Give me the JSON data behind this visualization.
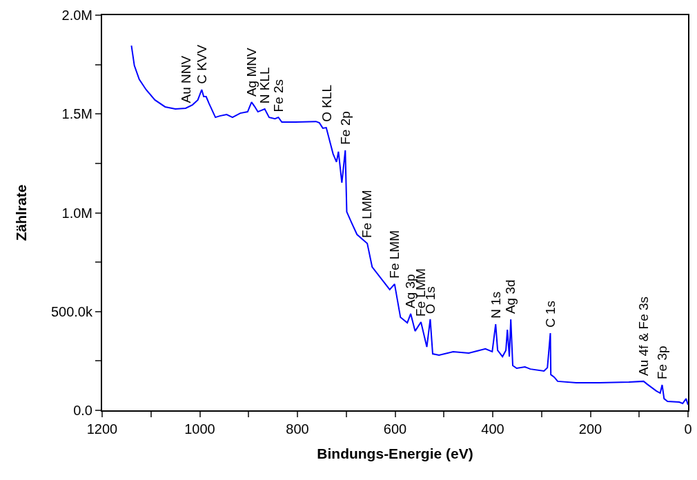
{
  "chart_data": {
    "type": "line",
    "xlabel": "Bindungs-Energie (eV)",
    "ylabel": "Zählrate",
    "x": [
      1140,
      1134,
      1124,
      1110,
      1092,
      1071,
      1050,
      1029,
      1015,
      1004,
      996,
      992,
      987,
      981,
      968,
      959,
      945,
      933,
      917,
      902,
      894,
      888,
      881,
      867,
      858,
      846,
      839,
      832,
      804,
      762,
      755,
      748,
      741,
      727,
      720,
      716,
      709,
      702,
      699,
      689,
      678,
      657,
      647,
      625,
      611,
      601,
      589,
      575,
      568,
      559,
      547,
      535,
      528,
      523,
      510,
      481,
      449,
      415,
      401,
      394,
      390,
      380,
      373,
      370,
      366,
      363,
      359,
      351,
      334,
      323,
      295,
      288,
      282,
      281,
      274,
      267,
      229,
      182,
      121,
      91,
      84,
      65,
      57,
      53,
      49,
      42,
      18,
      11,
      4,
      0
    ],
    "series": [
      {
        "color": "#0000ff",
        "values": [
          1846000,
          1745000,
          1675000,
          1623000,
          1571000,
          1536000,
          1525000,
          1529000,
          1546000,
          1571000,
          1623000,
          1588000,
          1588000,
          1553000,
          1483000,
          1490000,
          1497000,
          1483000,
          1504000,
          1511000,
          1560000,
          1539000,
          1511000,
          1525000,
          1483000,
          1476000,
          1483000,
          1459000,
          1459000,
          1462000,
          1455000,
          1428000,
          1431000,
          1298000,
          1257000,
          1309000,
          1152000,
          1316000,
          1005000,
          949000,
          890000,
          845000,
          726000,
          656000,
          611000,
          639000,
          471000,
          443000,
          489000,
          401000,
          447000,
          321000,
          461000,
          286000,
          279000,
          297000,
          290000,
          311000,
          297000,
          436000,
          304000,
          272000,
          304000,
          408000,
          272000,
          461000,
          227000,
          213000,
          220000,
          209000,
          199000,
          216000,
          391000,
          181000,
          168000,
          147000,
          140000,
          140000,
          143000,
          147000,
          133000,
          98000,
          87000,
          129000,
          59000,
          45000,
          42000,
          35000,
          59000,
          28000
        ]
      }
    ],
    "xlim": [
      1200,
      0
    ],
    "xticks": [
      1200,
      {
        "value": 1100,
        "label": null
      },
      1000,
      {
        "value": 900,
        "label": null
      },
      800,
      {
        "value": 700,
        "label": null
      },
      600,
      {
        "value": 500,
        "label": null
      },
      400,
      {
        "value": 300,
        "label": null
      },
      200,
      {
        "value": 100,
        "label": null
      },
      0
    ],
    "ylim": [
      0,
      2000000
    ],
    "yticks": [
      {
        "value": 0,
        "label": "0.0"
      },
      {
        "value": 250000,
        "label": null
      },
      {
        "value": 500000,
        "label": "500.0k"
      },
      {
        "value": 750000,
        "label": null
      },
      {
        "value": 1000000,
        "label": "1.0M"
      },
      {
        "value": 1250000,
        "label": null
      },
      {
        "value": 1500000,
        "label": "1.5M"
      },
      {
        "value": 1750000,
        "label": null
      },
      {
        "value": 2000000,
        "label": "2.0M"
      }
    ],
    "marker": "none",
    "line_style": "solid",
    "annotations": [
      {
        "text": "Au NNV",
        "x": 1029,
        "y": 1529000
      },
      {
        "text": "C KVV",
        "x": 996,
        "y": 1623000
      },
      {
        "text": "Ag MNV",
        "x": 894,
        "y": 1560000
      },
      {
        "text": "N KLL",
        "x": 867,
        "y": 1525000
      },
      {
        "text": "Fe 2s",
        "x": 839,
        "y": 1483000
      },
      {
        "text": "O KLL",
        "x": 741,
        "y": 1431000
      },
      {
        "text": "Fe 2p",
        "x": 702,
        "y": 1316000
      },
      {
        "text": "Fe LMM",
        "x": 657,
        "y": 845000
      },
      {
        "text": "Fe LMM",
        "x": 601,
        "y": 639000
      },
      {
        "text": "Ag 3p",
        "x": 568,
        "y": 489000
      },
      {
        "text": "Fe LMM",
        "x": 547,
        "y": 447000
      },
      {
        "text": "O 1s",
        "x": 528,
        "y": 461000
      },
      {
        "text": "N 1s",
        "x": 394,
        "y": 436000
      },
      {
        "text": "Ag 3d",
        "x": 363,
        "y": 461000
      },
      {
        "text": "C 1s",
        "x": 282,
        "y": 391000
      },
      {
        "text": "Au 4f & Fe 3s",
        "x": 91,
        "y": 147000
      },
      {
        "text": "Fe 3p",
        "x": 53,
        "y": 129000
      }
    ]
  }
}
